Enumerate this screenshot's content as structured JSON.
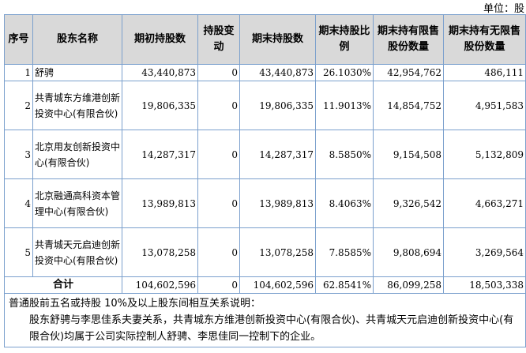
{
  "unit_label": "单位：股",
  "headers": [
    "序号",
    "股东名称",
    "期初持股数",
    "持股变动",
    "期末持股数",
    "期末持股比例",
    "期末持有限售股份数量",
    "期末持有无限售股份数量"
  ],
  "rows": [
    {
      "no": "1",
      "name": "舒骋",
      "start": "43,440,873",
      "change": "0",
      "end": "43,440,873",
      "ratio": "26.1030%",
      "restricted": "42,954,762",
      "unrestricted": "486,111"
    },
    {
      "no": "2",
      "name": "共青城东方维港创新投资中心(有限合伙)",
      "start": "19,806,335",
      "change": "0",
      "end": "19,806,335",
      "ratio": "11.9013%",
      "restricted": "14,854,752",
      "unrestricted": "4,951,583"
    },
    {
      "no": "3",
      "name": "北京用友创新投资中心(有限合伙)",
      "start": "14,287,317",
      "change": "0",
      "end": "14,287,317",
      "ratio": "8.5850%",
      "restricted": "9,154,508",
      "unrestricted": "5,132,809"
    },
    {
      "no": "4",
      "name": "北京融通高科资本管理中心(有限合伙)",
      "start": "13,989,813",
      "change": "0",
      "end": "13,989,813",
      "ratio": "8.4063%",
      "restricted": "9,326,542",
      "unrestricted": "4,663,271"
    },
    {
      "no": "5",
      "name": "共青城天元启迪创新投资中心(有限合伙)",
      "start": "13,078,258",
      "change": "0",
      "end": "13,078,258",
      "ratio": "7.8585%",
      "restricted": "9,808,694",
      "unrestricted": "3,269,564"
    }
  ],
  "total": {
    "label": "合计",
    "start": "104,602,596",
    "change": "0",
    "end": "104,602,596",
    "ratio": "62.8541%",
    "restricted": "86,099,258",
    "unrestricted": "18,503,338"
  },
  "note": {
    "title": "普通股前五名或持股 10%及以上股东间相互关系说明：",
    "body": "股东舒骋与李思佳系夫妻关系，共青城东方维港创新投资中心(有限合伙)、共青城天元启迪创新投资中心(有限合伙)均属于公司实际控制人舒骋、李思佳同一控制下的企业。"
  },
  "colors": {
    "border": "#7ba0cd",
    "header_bg": "#d9d9d9"
  }
}
